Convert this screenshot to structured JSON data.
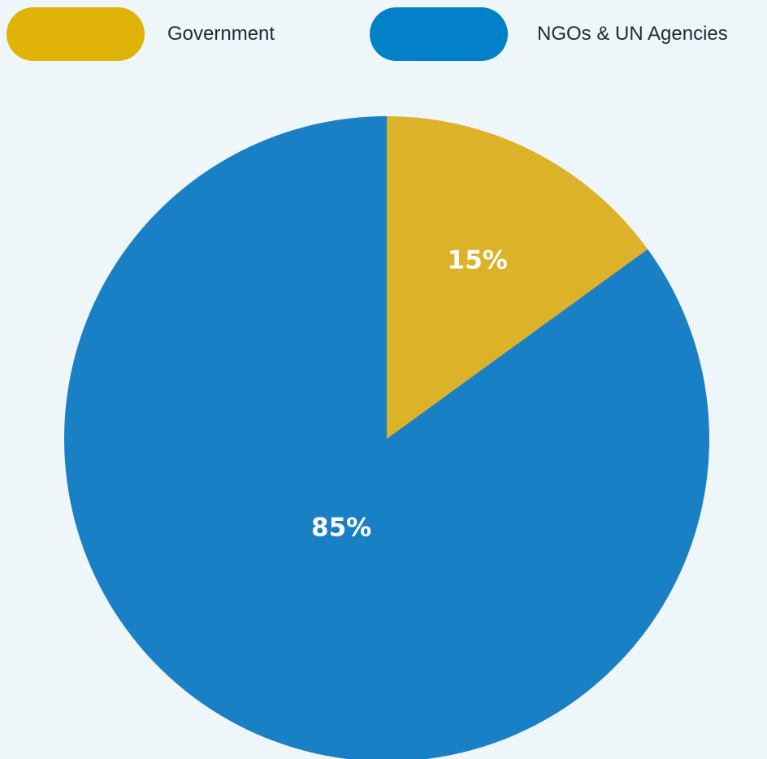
{
  "chart_data": {
    "type": "pie",
    "categories": [
      "Government",
      "NGOs & UN Agencies"
    ],
    "values": [
      15,
      85
    ],
    "value_labels": [
      "15%",
      "85%"
    ],
    "colors": [
      "#dcb228",
      "#1a80c6"
    ],
    "legend_colors": [
      "#dfb308",
      "#0281c8"
    ],
    "legend_position": "top",
    "start_angle_deg": 0,
    "direction": "clockwise"
  }
}
